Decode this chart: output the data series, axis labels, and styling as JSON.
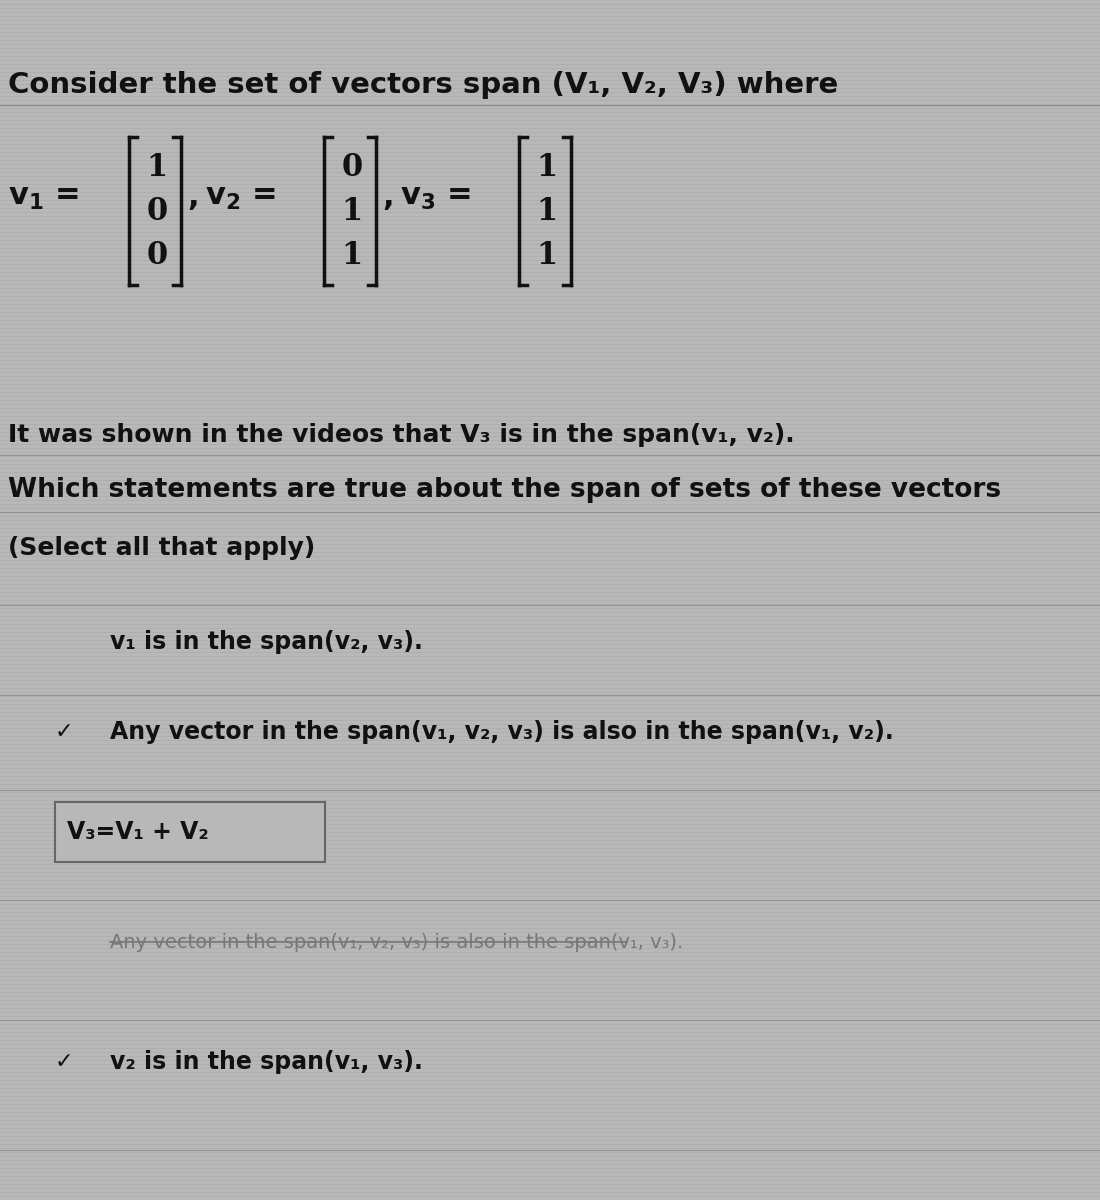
{
  "bg_color": "#b8b8b8",
  "scan_line_color": "#a0a0a0",
  "text_color": "#111111",
  "dim_color": "#777777",
  "title_line": "Consider the set of vectors span (V₁, V₂, V₃) where",
  "v1_entries": [
    "1",
    "0",
    "0"
  ],
  "v2_entries": [
    "0",
    "1",
    "1"
  ],
  "v3_entries": [
    "1",
    "1",
    "1"
  ],
  "shown_text_parts": [
    {
      "text": "It was shown in the videos that ",
      "bold": false
    },
    {
      "text": "V₃",
      "bold": true
    },
    {
      "text": " is in the span(",
      "bold": false
    },
    {
      "text": "v₁",
      "bold": true
    },
    {
      "text": ", ",
      "bold": false
    },
    {
      "text": "v₂",
      "bold": true
    },
    {
      "text": ").",
      "bold": false
    }
  ],
  "shown_text": "It was shown in the videos that V₃ is in the span(v₁, v₂).",
  "which_text": "Which statements are true about the span of sets of these vectors",
  "select_text": "(Select all that apply)",
  "options": [
    {
      "text": "v₁ is in the span(v₂, v₃).",
      "checked": false,
      "strikethrough": false,
      "boxed": false,
      "dim": false
    },
    {
      "text": "Any vector in the span(v₁, v₂, v₃) is also in the span(v₁, v₂).",
      "checked": true,
      "strikethrough": false,
      "boxed": false,
      "dim": false
    },
    {
      "text": "V₃=V₁ + V₂",
      "checked": false,
      "strikethrough": false,
      "boxed": true,
      "dim": false
    },
    {
      "text": "Any vector in the span(v₁, v₂, v₃) is also in the span(v₁, v₃).",
      "checked": false,
      "strikethrough": true,
      "boxed": false,
      "dim": true
    },
    {
      "text": "v₂ is in the span(v₁, v₃).",
      "checked": true,
      "strikethrough": false,
      "boxed": false,
      "dim": false
    }
  ],
  "fig_width": 11.0,
  "fig_height": 12.0,
  "dpi": 100
}
